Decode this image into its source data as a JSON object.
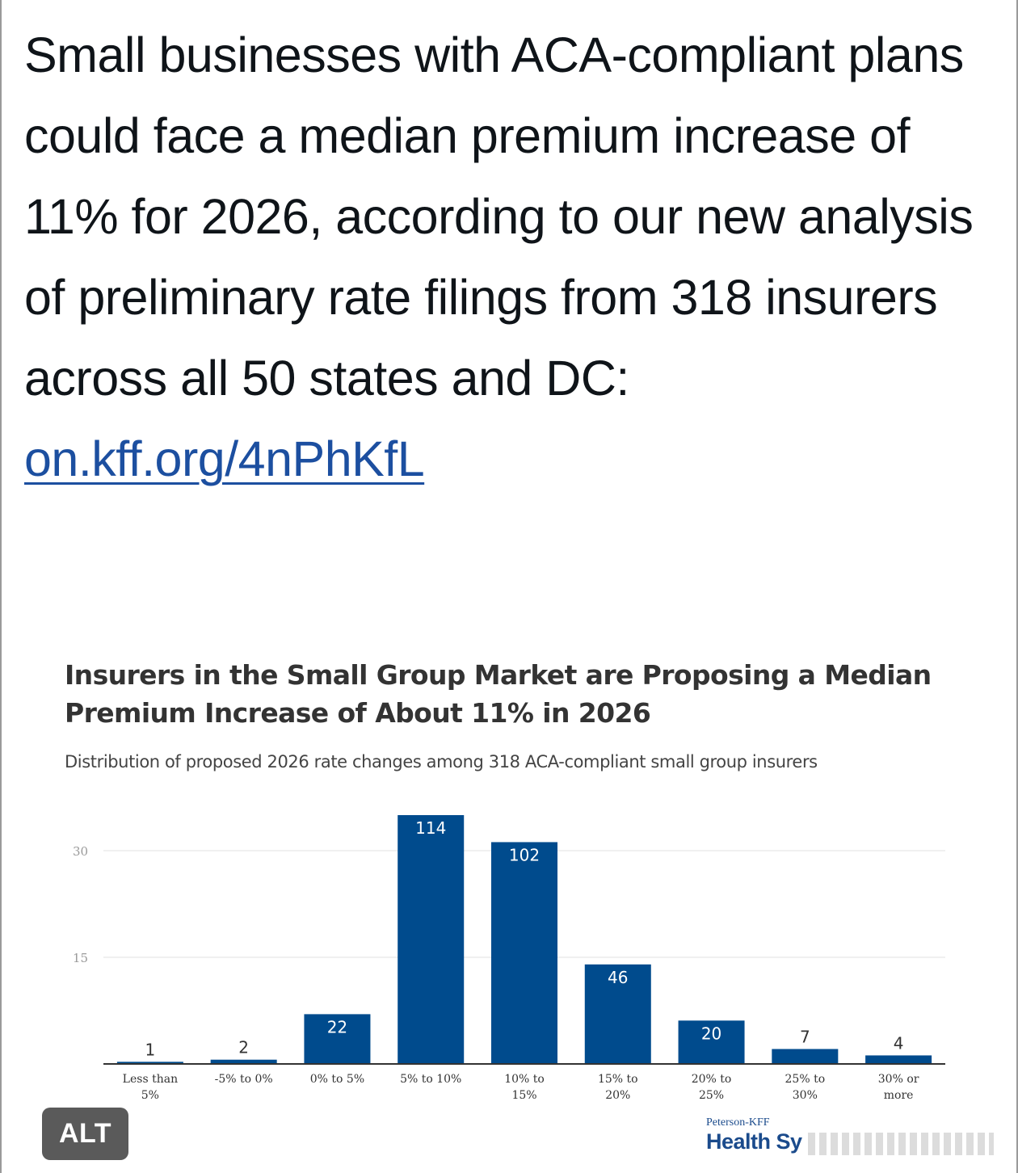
{
  "post": {
    "text": "Small businesses with ACA-compliant plans could face a median premium increase of 11% for 2026, according to our new analysis of preliminary rate filings from 318 insurers across all 50 states and DC:",
    "link_text": "on.kff.org/4nPhKfL"
  },
  "chart": {
    "title": "Insurers in the Small Group Market are Proposing a Median Premium Increase of About 11% in 2026",
    "subtitle": "Distribution of proposed 2026 rate changes among 318 ACA-compliant small group insurers",
    "source_line1": "Peterson-KFF",
    "source_line2": "Health Sy"
  },
  "chart_data": {
    "type": "bar",
    "title": "Insurers in the Small Group Market are Proposing a Median Premium Increase of About 11% in 2026",
    "subtitle": "Distribution of proposed 2026 rate changes among 318 ACA-compliant small group insurers",
    "categories": [
      [
        "Less than",
        "5%"
      ],
      [
        "-5% to 0%"
      ],
      [
        "0% to 5%"
      ],
      [
        "5% to 10%"
      ],
      [
        "10% to",
        "15%"
      ],
      [
        "15% to",
        "20%"
      ],
      [
        "20% to",
        "25%"
      ],
      [
        "25% to",
        "30%"
      ],
      [
        "30% or",
        "more"
      ]
    ],
    "values": [
      1,
      2,
      22,
      114,
      102,
      46,
      20,
      7,
      4
    ],
    "data_labels": [
      "1",
      "2",
      "22",
      "114",
      "102",
      "46",
      "20",
      "7",
      "4"
    ],
    "bar_heights_on_axis": [
      0.3,
      0.6,
      7,
      35,
      31.2,
      14,
      6.1,
      2.1,
      1.2
    ],
    "yticks": [
      "30",
      "15"
    ],
    "ytick_values": [
      30,
      15
    ],
    "ylim": [
      0,
      36
    ],
    "xlabel": "",
    "ylabel": "",
    "grid": true,
    "bar_color": "#004b8d"
  },
  "ui": {
    "alt_label": "ALT"
  }
}
